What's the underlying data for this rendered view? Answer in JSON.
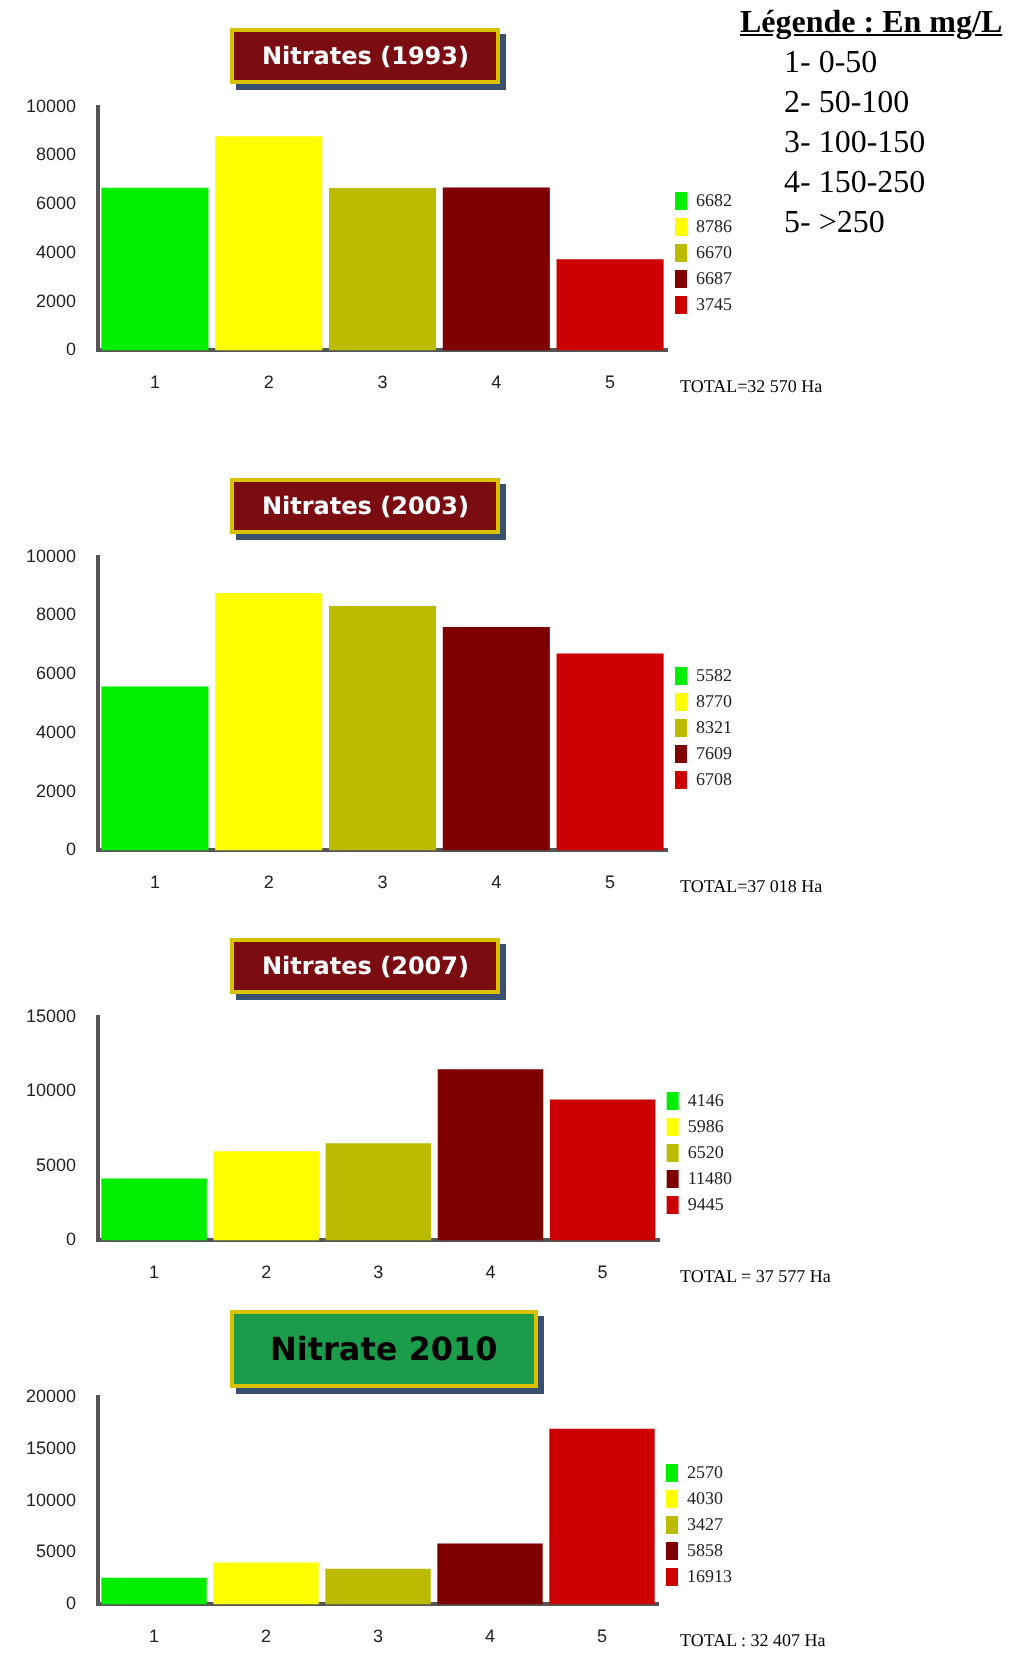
{
  "chart_data": [
    {
      "type": "bar",
      "title": "Nitrates  (1993)",
      "categories": [
        "1",
        "2",
        "3",
        "4",
        "5"
      ],
      "legend": "right",
      "grid": false,
      "ylim": [
        0,
        10000
      ],
      "yticks": [
        0,
        2000,
        4000,
        6000,
        8000,
        10000
      ],
      "series": [
        {
          "name": "6682",
          "color": "#00ee00",
          "values": [
            6682,
            null,
            null,
            null,
            null
          ]
        },
        {
          "name": "8786",
          "color": "#ffff00",
          "values": [
            null,
            8786,
            null,
            null,
            null
          ]
        },
        {
          "name": "6670",
          "color": "#bbbb00",
          "values": [
            null,
            null,
            6670,
            null,
            null
          ]
        },
        {
          "name": "6687",
          "color": "#7f0000",
          "values": [
            null,
            null,
            null,
            6687,
            null
          ]
        },
        {
          "name": "3745",
          "color": "#cc0000",
          "values": [
            null,
            null,
            null,
            null,
            3745
          ]
        }
      ],
      "annotations": [
        "TOTAL=32 570 Ha",
        "Légende : En mg/L",
        "1- 0-50",
        "2- 50-100",
        "3- 100-150",
        "4- 150-250",
        "5- >250"
      ]
    },
    {
      "type": "bar",
      "title": "Nitrates  (2003)",
      "categories": [
        "1",
        "2",
        "3",
        "4",
        "5"
      ],
      "legend": "right",
      "grid": false,
      "ylim": [
        0,
        10000
      ],
      "yticks": [
        0,
        2000,
        4000,
        6000,
        8000,
        10000
      ],
      "series": [
        {
          "name": "5582",
          "color": "#00ee00",
          "values": [
            5582,
            null,
            null,
            null,
            null
          ]
        },
        {
          "name": "8770",
          "color": "#ffff00",
          "values": [
            null,
            8770,
            null,
            null,
            null
          ]
        },
        {
          "name": "8321",
          "color": "#bbbb00",
          "values": [
            null,
            null,
            8321,
            null,
            null
          ]
        },
        {
          "name": "7609",
          "color": "#7f0000",
          "values": [
            null,
            null,
            null,
            7609,
            null
          ]
        },
        {
          "name": "6708",
          "color": "#cc0000",
          "values": [
            null,
            null,
            null,
            null,
            6708
          ]
        }
      ],
      "annotations": [
        "TOTAL=37 018 Ha"
      ]
    },
    {
      "type": "bar",
      "title": "Nitrates  (2007)",
      "categories": [
        "1",
        "2",
        "3",
        "4",
        "5"
      ],
      "legend": "right",
      "grid": false,
      "ylim": [
        0,
        15000
      ],
      "yticks": [
        0,
        5000,
        10000,
        15000
      ],
      "series": [
        {
          "name": "4146",
          "color": "#00ee00",
          "values": [
            4146,
            null,
            null,
            null,
            null
          ]
        },
        {
          "name": "5986",
          "color": "#ffff00",
          "values": [
            null,
            5986,
            null,
            null,
            null
          ]
        },
        {
          "name": "6520",
          "color": "#bbbb00",
          "values": [
            null,
            null,
            6520,
            null,
            null
          ]
        },
        {
          "name": "11480",
          "color": "#7f0000",
          "values": [
            null,
            null,
            null,
            11480,
            null
          ]
        },
        {
          "name": "9445",
          "color": "#cc0000",
          "values": [
            null,
            null,
            null,
            null,
            9445
          ]
        }
      ],
      "annotations": [
        "TOTAL = 37 577 Ha"
      ]
    },
    {
      "type": "bar",
      "title": "Nitrate 2010",
      "categories": [
        "1",
        "2",
        "3",
        "4",
        "5"
      ],
      "legend": "right",
      "grid": false,
      "ylim": [
        0,
        20000
      ],
      "yticks": [
        0,
        5000,
        10000,
        15000,
        20000
      ],
      "series": [
        {
          "name": "2570",
          "color": "#00ee00",
          "values": [
            2570,
            null,
            null,
            null,
            null
          ]
        },
        {
          "name": "4030",
          "color": "#ffff00",
          "values": [
            null,
            4030,
            null,
            null,
            null
          ]
        },
        {
          "name": "3427",
          "color": "#bbbb00",
          "values": [
            null,
            null,
            3427,
            null,
            null
          ]
        },
        {
          "name": "5858",
          "color": "#7f0000",
          "values": [
            null,
            null,
            null,
            5858,
            null
          ]
        },
        {
          "name": "16913",
          "color": "#cc0000",
          "values": [
            null,
            null,
            null,
            null,
            16913
          ]
        }
      ],
      "annotations": [
        "TOTAL : 32 407 Ha"
      ]
    }
  ]
}
